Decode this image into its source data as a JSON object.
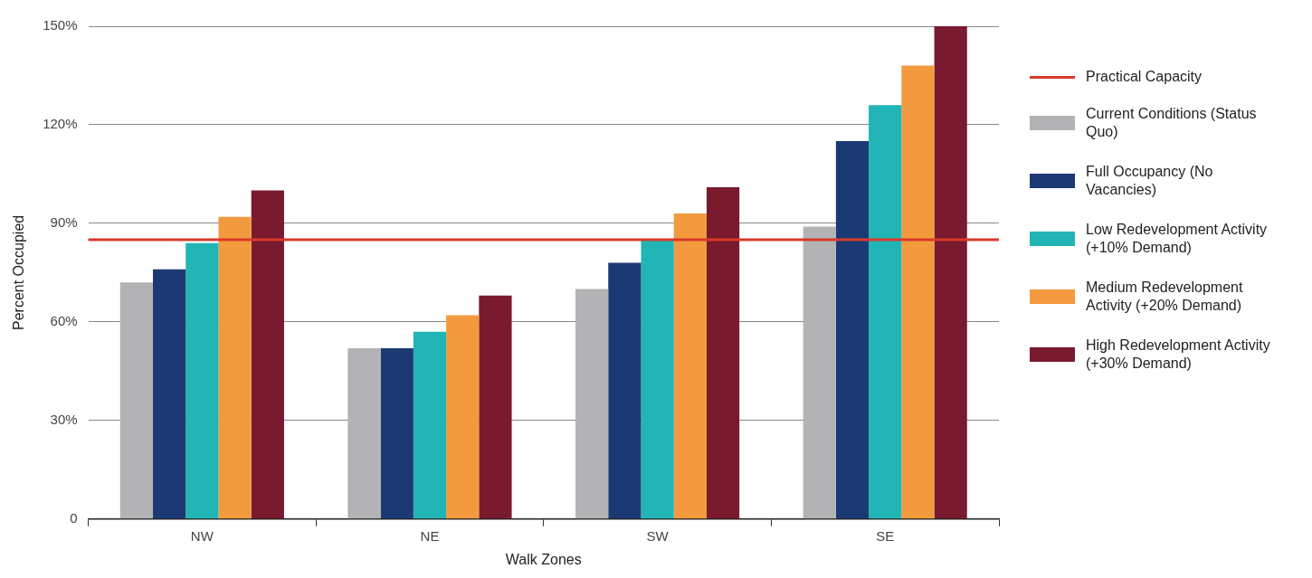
{
  "chart_data": {
    "type": "bar",
    "xlabel": "Walk Zones",
    "ylabel": "Percent Occupied",
    "categories": [
      "NW",
      "NE",
      "SW",
      "SE"
    ],
    "series": [
      {
        "name": "Current Conditions (Status Quo)",
        "color": "#b3b3b5",
        "values": [
          72,
          52,
          70,
          89
        ]
      },
      {
        "name": "Full Occupancy (No Vacancies)",
        "color": "#1b3a73",
        "values": [
          76,
          52,
          78,
          115
        ]
      },
      {
        "name": "Low Redevelopment Activity (+10% Demand)",
        "color": "#22b5b5",
        "values": [
          84,
          57,
          85,
          126
        ]
      },
      {
        "name": "Medium Redevelopment Activity (+20% Demand)",
        "color": "#f39a3e",
        "values": [
          92,
          62,
          93,
          138
        ]
      },
      {
        "name": "High Redevelopment Activity (+30% Demand)",
        "color": "#7a1a2e",
        "values": [
          100,
          68,
          101,
          150
        ]
      }
    ],
    "ylim": [
      0,
      150
    ],
    "yticks": [
      {
        "value": 0,
        "label": "0"
      },
      {
        "value": 30,
        "label": "30%"
      },
      {
        "value": 60,
        "label": "60%"
      },
      {
        "value": 90,
        "label": "90%"
      },
      {
        "value": 120,
        "label": "120%"
      },
      {
        "value": 150,
        "label": "150%"
      }
    ],
    "ref_lines": [
      {
        "axis": "y",
        "value": 85,
        "label": "Practical Capacity",
        "color": "#d93a2b"
      }
    ],
    "grid": "y",
    "legend": "right"
  }
}
